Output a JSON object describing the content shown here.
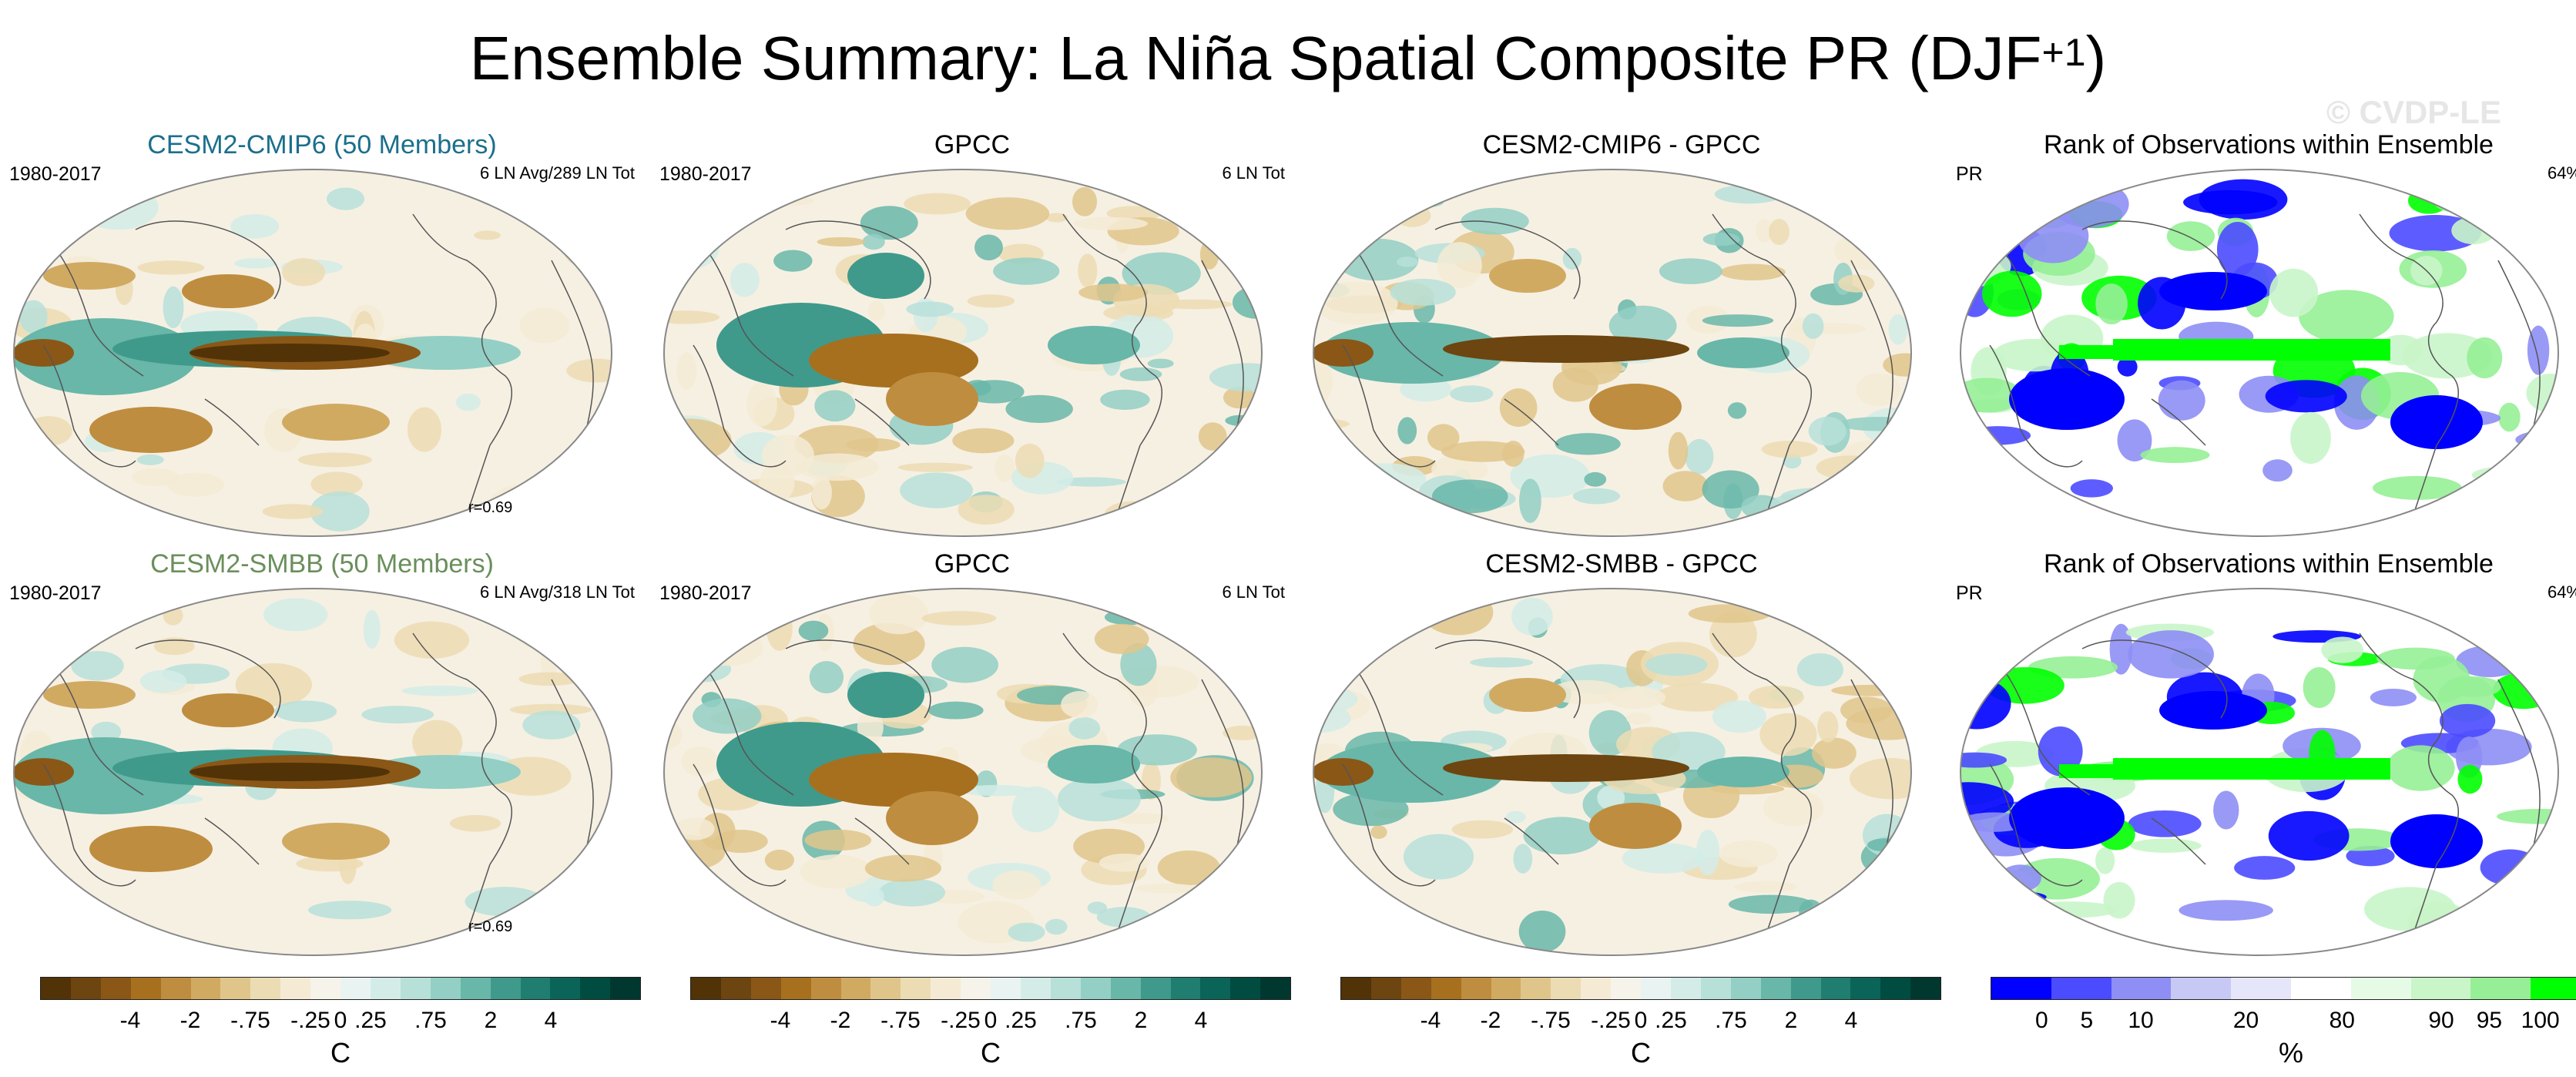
{
  "title": {
    "main": "Ensemble Summary: La Niña Spatial Composite PR (DJF",
    "sup": "+1",
    "close": ")"
  },
  "watermark": "© CVDP-LE",
  "palettes": {
    "diverging": [
      "#523307",
      "#6d4510",
      "#8a5717",
      "#a7701f",
      "#bf8d3f",
      "#d1aa62",
      "#e0c58b",
      "#ecdcb3",
      "#f5ebd5",
      "#f6f3ea",
      "#e9f4f2",
      "#d4ece8",
      "#b7e0d9",
      "#93cfc4",
      "#68b7a9",
      "#3f9a8c",
      "#1f7e70",
      "#0b6458",
      "#004c41",
      "#00382f"
    ],
    "rank": [
      "#0000ff",
      "#4b4bff",
      "#8e8ef5",
      "#c8c8f5",
      "#e6e6fa",
      "#ffffff",
      "#e6fbe6",
      "#c9f5c9",
      "#96ef96",
      "#00ff00"
    ]
  },
  "rows": [
    {
      "panels": [
        {
          "title": "CESM2-CMIP6 (50 Members)",
          "title_color": "#1b6f8c",
          "left": "1980-2017",
          "right": "6 LN Avg/289 LN Tot",
          "corr": "r=0.69",
          "kind": "model"
        },
        {
          "title": "GPCC",
          "title_color": "#000000",
          "left": "1980-2017",
          "right": "6 LN Tot",
          "corr": "",
          "kind": "obs"
        },
        {
          "title": "CESM2-CMIP6 - GPCC",
          "title_color": "#000000",
          "left": "",
          "right": "",
          "corr": "",
          "kind": "diff"
        },
        {
          "title": "Rank of Observations within Ensemble",
          "title_color": "#000000",
          "left": "PR",
          "right": "64%",
          "corr": "",
          "kind": "rank"
        }
      ]
    },
    {
      "panels": [
        {
          "title": "CESM2-SMBB (50 Members)",
          "title_color": "#6a8f5c",
          "left": "1980-2017",
          "right": "6 LN Avg/318 LN Tot",
          "corr": "r=0.69",
          "kind": "model"
        },
        {
          "title": "GPCC",
          "title_color": "#000000",
          "left": "1980-2017",
          "right": "6 LN Tot",
          "corr": "",
          "kind": "obs"
        },
        {
          "title": "CESM2-SMBB - GPCC",
          "title_color": "#000000",
          "left": "",
          "right": "",
          "corr": "",
          "kind": "diff"
        },
        {
          "title": "Rank of Observations within Ensemble",
          "title_color": "#000000",
          "left": "PR",
          "right": "64%",
          "corr": "",
          "kind": "rank"
        }
      ]
    }
  ],
  "colorbars": [
    {
      "unit": "C",
      "ticks": [
        "-4",
        "-2",
        "-.75",
        "-.25",
        "0",
        ".25",
        ".75",
        "2",
        "4"
      ],
      "tick_positions": [
        0.15,
        0.25,
        0.35,
        0.45,
        0.5,
        0.55,
        0.65,
        0.75,
        0.85
      ],
      "palette": "diverging"
    },
    {
      "unit": "C",
      "ticks": [
        "-4",
        "-2",
        "-.75",
        "-.25",
        "0",
        ".25",
        ".75",
        "2",
        "4"
      ],
      "tick_positions": [
        0.15,
        0.25,
        0.35,
        0.45,
        0.5,
        0.55,
        0.65,
        0.75,
        0.85
      ],
      "palette": "diverging"
    },
    {
      "unit": "C",
      "ticks": [
        "-4",
        "-2",
        "-.75",
        "-.25",
        "0",
        ".25",
        ".75",
        "2",
        "4"
      ],
      "tick_positions": [
        0.15,
        0.25,
        0.35,
        0.45,
        0.5,
        0.55,
        0.65,
        0.75,
        0.85
      ],
      "palette": "diverging"
    },
    {
      "unit": "%",
      "ticks": [
        "0",
        "5",
        "10",
        "20",
        "80",
        "90",
        "95",
        "100"
      ],
      "tick_positions": [
        0.085,
        0.16,
        0.25,
        0.425,
        0.585,
        0.75,
        0.83,
        0.915
      ],
      "palette": "rank"
    }
  ],
  "chart_data": [
    {
      "type": "heatmap",
      "title": "CESM2-CMIP6 (50 Members)",
      "period": "1980-2017",
      "annotation": "6 LN Avg/289 LN Tot",
      "correlation": "r=0.69",
      "unit": "C",
      "levels": [
        -4,
        -2,
        -0.75,
        -0.25,
        0,
        0.25,
        0.75,
        2,
        4
      ]
    },
    {
      "type": "heatmap",
      "title": "GPCC",
      "period": "1980-2017",
      "annotation": "6 LN Tot",
      "unit": "C",
      "levels": [
        -4,
        -2,
        -0.75,
        -0.25,
        0,
        0.25,
        0.75,
        2,
        4
      ]
    },
    {
      "type": "heatmap",
      "title": "CESM2-CMIP6 - GPCC",
      "unit": "C",
      "levels": [
        -4,
        -2,
        -0.75,
        -0.25,
        0,
        0.25,
        0.75,
        2,
        4
      ]
    },
    {
      "type": "heatmap",
      "title": "Rank of Observations within Ensemble",
      "variable": "PR",
      "annotation": "64%",
      "unit": "%",
      "levels": [
        0,
        5,
        10,
        20,
        80,
        90,
        95,
        100
      ]
    },
    {
      "type": "heatmap",
      "title": "CESM2-SMBB (50 Members)",
      "period": "1980-2017",
      "annotation": "6 LN Avg/318 LN Tot",
      "correlation": "r=0.69",
      "unit": "C",
      "levels": [
        -4,
        -2,
        -0.75,
        -0.25,
        0,
        0.25,
        0.75,
        2,
        4
      ]
    },
    {
      "type": "heatmap",
      "title": "GPCC",
      "period": "1980-2017",
      "annotation": "6 LN Tot",
      "unit": "C",
      "levels": [
        -4,
        -2,
        -0.75,
        -0.25,
        0,
        0.25,
        0.75,
        2,
        4
      ]
    },
    {
      "type": "heatmap",
      "title": "CESM2-SMBB - GPCC",
      "unit": "C",
      "levels": [
        -4,
        -2,
        -0.75,
        -0.25,
        0,
        0.25,
        0.75,
        2,
        4
      ]
    },
    {
      "type": "heatmap",
      "title": "Rank of Observations within Ensemble",
      "variable": "PR",
      "annotation": "64%",
      "unit": "%",
      "levels": [
        0,
        5,
        10,
        20,
        80,
        90,
        95,
        100
      ]
    }
  ]
}
